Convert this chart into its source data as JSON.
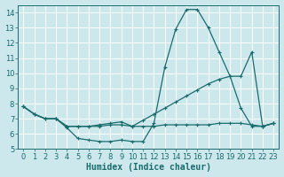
{
  "xlabel": "Humidex (Indice chaleur)",
  "xlim": [
    -0.5,
    23.5
  ],
  "ylim": [
    5,
    14.5
  ],
  "yticks": [
    5,
    6,
    7,
    8,
    9,
    10,
    11,
    12,
    13,
    14
  ],
  "xticks": [
    0,
    1,
    2,
    3,
    4,
    5,
    6,
    7,
    8,
    9,
    10,
    11,
    12,
    13,
    14,
    15,
    16,
    17,
    18,
    19,
    20,
    21,
    22,
    23
  ],
  "bg_color": "#cce8ed",
  "grid_color": "#b0d0d8",
  "line_color": "#1a6b6b",
  "line1_y": [
    7.8,
    7.3,
    7.0,
    7.0,
    6.4,
    5.7,
    5.6,
    5.5,
    5.5,
    5.6,
    5.5,
    5.5,
    6.7,
    10.4,
    12.9,
    14.2,
    14.2,
    13.0,
    11.4,
    9.8,
    7.7,
    6.5,
    6.5,
    6.7
  ],
  "line2_y": [
    7.8,
    7.3,
    7.0,
    7.0,
    6.5,
    6.5,
    6.5,
    6.6,
    6.7,
    6.8,
    6.5,
    6.9,
    7.3,
    7.7,
    8.1,
    8.5,
    8.9,
    9.3,
    9.6,
    9.8,
    9.8,
    11.4,
    6.5,
    6.7
  ],
  "line3_y": [
    7.8,
    7.3,
    7.0,
    7.0,
    6.5,
    6.5,
    6.5,
    6.5,
    6.6,
    6.6,
    6.5,
    6.5,
    6.5,
    6.6,
    6.6,
    6.6,
    6.6,
    6.6,
    6.7,
    6.7,
    6.7,
    6.6,
    6.5,
    6.7
  ],
  "font_size_axis": 6,
  "font_size_label": 7
}
